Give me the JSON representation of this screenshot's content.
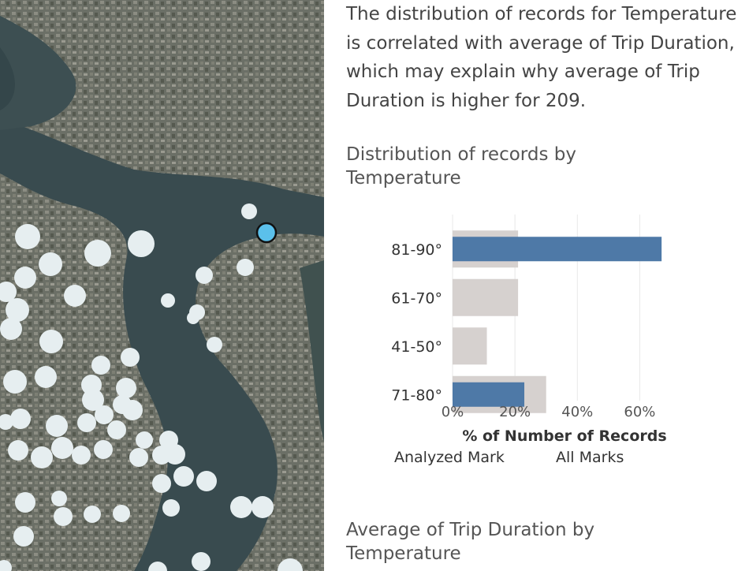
{
  "explanation_text": "The distribution of records for Temperature is correlated with average of Trip Duration, which may explain why average of Trip Duration is higher for 209.",
  "distribution_section": {
    "title": "Distribution of records by Temperature"
  },
  "average_section": {
    "title": "Average of Trip Duration by Temperature"
  },
  "colors": {
    "analyzed": "#4e79a7",
    "all_marks": "#d6d1cf",
    "map_marker": "#e6eef0",
    "highlight_marker": "#5bc0eb"
  },
  "chart_data": {
    "type": "bar",
    "orientation": "horizontal",
    "categories": [
      "81-90°",
      "61-70°",
      "41-50°",
      "71-80°"
    ],
    "series": [
      {
        "name": "Analyzed Mark",
        "values": [
          67,
          null,
          null,
          23
        ]
      },
      {
        "name": "All Marks",
        "values": [
          21,
          21,
          11,
          30
        ]
      }
    ],
    "xlabel": "% of Number of Records",
    "xticks": [
      "0%",
      "20%",
      "40%",
      "60%"
    ],
    "xlim": [
      0,
      70
    ],
    "grid": true,
    "legend": "bottom"
  },
  "map": {
    "marker_count_hint": "many",
    "highlighted_marker": true
  }
}
